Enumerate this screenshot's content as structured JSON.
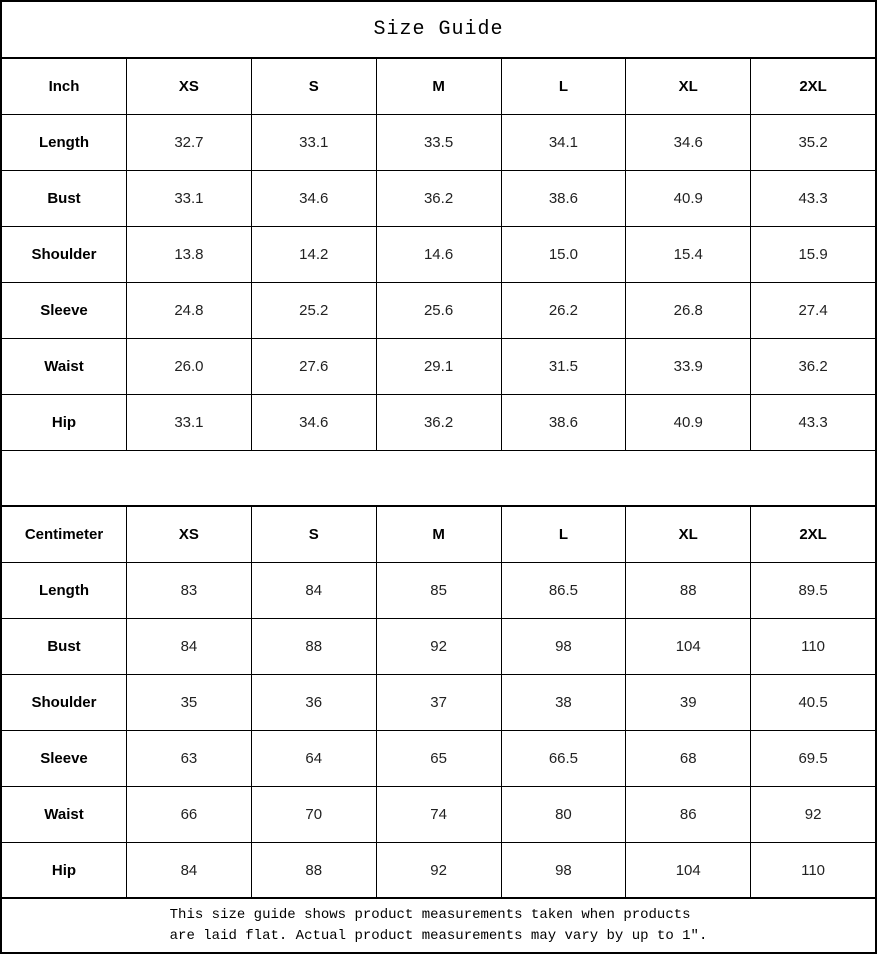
{
  "title": "Size Guide",
  "sizes": [
    "XS",
    "S",
    "M",
    "L",
    "XL",
    "2XL"
  ],
  "tables": [
    {
      "unit": "Inch",
      "rows": [
        {
          "label": "Length",
          "values": [
            "32.7",
            "33.1",
            "33.5",
            "34.1",
            "34.6",
            "35.2"
          ]
        },
        {
          "label": "Bust",
          "values": [
            "33.1",
            "34.6",
            "36.2",
            "38.6",
            "40.9",
            "43.3"
          ]
        },
        {
          "label": "Shoulder",
          "values": [
            "13.8",
            "14.2",
            "14.6",
            "15.0",
            "15.4",
            "15.9"
          ]
        },
        {
          "label": "Sleeve",
          "values": [
            "24.8",
            "25.2",
            "25.6",
            "26.2",
            "26.8",
            "27.4"
          ]
        },
        {
          "label": "Waist",
          "values": [
            "26.0",
            "27.6",
            "29.1",
            "31.5",
            "33.9",
            "36.2"
          ]
        },
        {
          "label": "Hip",
          "values": [
            "33.1",
            "34.6",
            "36.2",
            "38.6",
            "40.9",
            "43.3"
          ]
        }
      ]
    },
    {
      "unit": "Centimeter",
      "rows": [
        {
          "label": "Length",
          "values": [
            "83",
            "84",
            "85",
            "86.5",
            "88",
            "89.5"
          ]
        },
        {
          "label": "Bust",
          "values": [
            "84",
            "88",
            "92",
            "98",
            "104",
            "110"
          ]
        },
        {
          "label": "Shoulder",
          "values": [
            "35",
            "36",
            "37",
            "38",
            "39",
            "40.5"
          ]
        },
        {
          "label": "Sleeve",
          "values": [
            "63",
            "64",
            "65",
            "66.5",
            "68",
            "69.5"
          ]
        },
        {
          "label": "Waist",
          "values": [
            "66",
            "70",
            "74",
            "80",
            "86",
            "92"
          ]
        },
        {
          "label": "Hip",
          "values": [
            "84",
            "88",
            "92",
            "98",
            "104",
            "110"
          ]
        }
      ]
    }
  ],
  "footnote": {
    "line1": "This size guide shows product measurements taken when products",
    "line2": "are laid flat. Actual product measurements may vary by up to 1″."
  },
  "colors": {
    "border": "#000000",
    "background": "#ffffff",
    "text": "#000000"
  }
}
